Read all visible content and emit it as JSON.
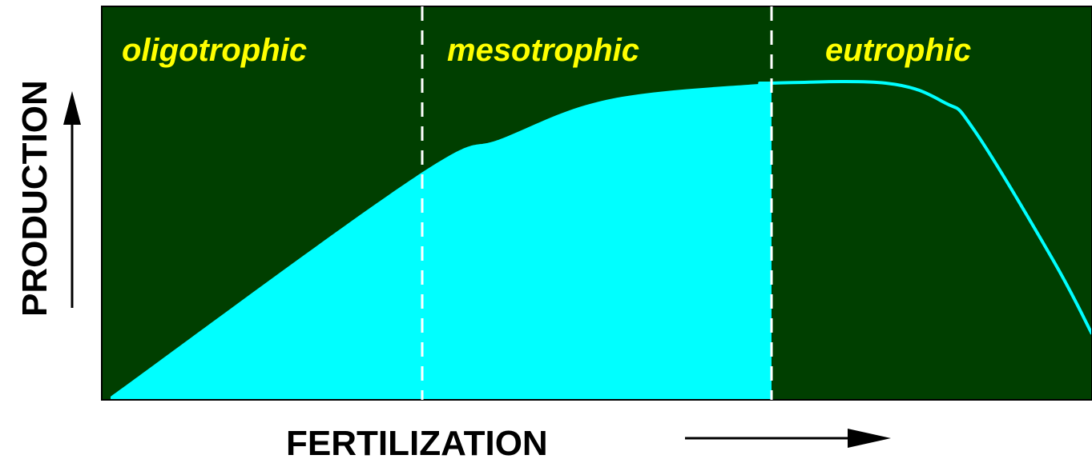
{
  "colors": {
    "background": "#003f00",
    "fill": "#00ffff",
    "zone_label": "#ffff00",
    "divider": "#ffffff",
    "axis": "#000000"
  },
  "zones": [
    {
      "label": "oligotrophic"
    },
    {
      "label": "mesotrophic"
    },
    {
      "label": "eutrophic"
    }
  ],
  "axes": {
    "y_label": "PRODUCTION",
    "x_label": "FERTILIZATION"
  },
  "curve": {
    "description_points": [
      [
        0.0,
        0.0
      ],
      [
        0.31,
        0.56
      ],
      [
        0.4,
        0.66
      ],
      [
        0.51,
        0.76
      ],
      [
        0.67,
        0.8
      ],
      [
        0.79,
        0.8
      ],
      [
        0.85,
        0.75
      ],
      [
        0.88,
        0.68
      ],
      [
        0.96,
        0.35
      ],
      [
        1.0,
        0.16
      ]
    ]
  }
}
